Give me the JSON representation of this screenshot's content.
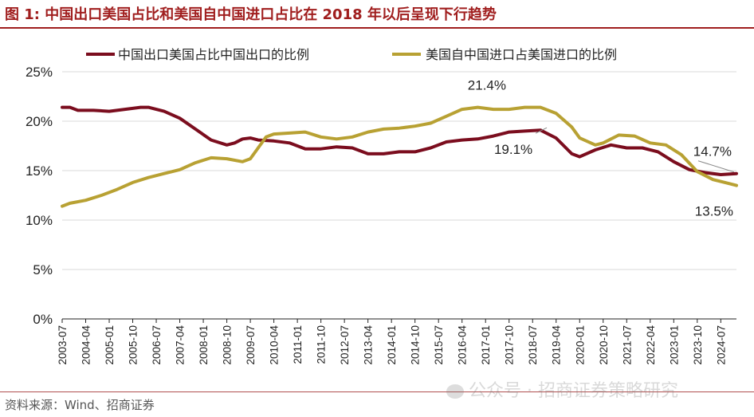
{
  "title": "图 1:  中国出口美国占比和美国自中国进口占比在 2018 年以后呈现下行趋势",
  "source": "资料来源：Wind、招商证券",
  "watermark": "公众号 · 招商证券策略研究",
  "colors": {
    "accent": "#a01e1e",
    "series1": "#7b0d1e",
    "series2": "#b8a133"
  },
  "chart_data": {
    "type": "line",
    "title": "中国出口美国占比和美国自中国进口占比在 2018 年以后呈现下行趋势",
    "xlabel": "",
    "ylabel": "",
    "ylim": [
      0,
      25
    ],
    "yticks": [
      "0%",
      "5%",
      "10%",
      "15%",
      "20%",
      "25%"
    ],
    "x_tick_labels": [
      "2003-07",
      "2004-04",
      "2005-01",
      "2005-10",
      "2006-07",
      "2007-04",
      "2008-01",
      "2008-10",
      "2009-07",
      "2010-04",
      "2011-01",
      "2011-10",
      "2012-07",
      "2013-04",
      "2014-01",
      "2014-10",
      "2015-07",
      "2016-04",
      "2017-01",
      "2017-10",
      "2018-07",
      "2019-04",
      "2020-01",
      "2020-10",
      "2021-07",
      "2022-04",
      "2023-01",
      "2023-10",
      "2024-07"
    ],
    "legend_position": "top",
    "grid": "horizontal",
    "series": [
      {
        "name": "中国出口美国占比中国出口的比例",
        "points": [
          [
            "2003-07",
            21.4
          ],
          [
            "2003-10",
            21.4
          ],
          [
            "2004-01",
            21.1
          ],
          [
            "2004-07",
            21.1
          ],
          [
            "2005-01",
            21.0
          ],
          [
            "2005-07",
            21.2
          ],
          [
            "2006-01",
            21.4
          ],
          [
            "2006-04",
            21.4
          ],
          [
            "2006-10",
            21.0
          ],
          [
            "2007-04",
            20.3
          ],
          [
            "2007-10",
            19.2
          ],
          [
            "2008-04",
            18.1
          ],
          [
            "2008-10",
            17.6
          ],
          [
            "2009-01",
            17.8
          ],
          [
            "2009-04",
            18.2
          ],
          [
            "2009-07",
            18.3
          ],
          [
            "2009-10",
            18.1
          ],
          [
            "2010-04",
            18.0
          ],
          [
            "2010-10",
            17.8
          ],
          [
            "2011-04",
            17.2
          ],
          [
            "2011-10",
            17.2
          ],
          [
            "2012-04",
            17.4
          ],
          [
            "2012-10",
            17.3
          ],
          [
            "2013-04",
            16.7
          ],
          [
            "2013-10",
            16.7
          ],
          [
            "2014-04",
            16.9
          ],
          [
            "2014-10",
            16.9
          ],
          [
            "2015-04",
            17.3
          ],
          [
            "2015-10",
            17.9
          ],
          [
            "2016-04",
            18.1
          ],
          [
            "2016-10",
            18.2
          ],
          [
            "2017-04",
            18.5
          ],
          [
            "2017-10",
            18.9
          ],
          [
            "2018-04",
            19.0
          ],
          [
            "2018-10",
            19.1
          ],
          [
            "2019-04",
            18.3
          ],
          [
            "2019-10",
            16.7
          ],
          [
            "2020-01",
            16.4
          ],
          [
            "2020-07",
            17.1
          ],
          [
            "2021-01",
            17.6
          ],
          [
            "2021-07",
            17.3
          ],
          [
            "2022-01",
            17.3
          ],
          [
            "2022-07",
            16.9
          ],
          [
            "2023-01",
            15.9
          ],
          [
            "2023-07",
            15.1
          ],
          [
            "2024-01",
            14.8
          ],
          [
            "2024-07",
            14.6
          ],
          [
            "2025-01",
            14.7
          ]
        ]
      },
      {
        "name": "美国自中国进口占美国进口的比例",
        "points": [
          [
            "2003-07",
            11.4
          ],
          [
            "2003-10",
            11.7
          ],
          [
            "2004-04",
            12.0
          ],
          [
            "2004-10",
            12.5
          ],
          [
            "2005-04",
            13.1
          ],
          [
            "2005-10",
            13.8
          ],
          [
            "2006-04",
            14.3
          ],
          [
            "2006-10",
            14.7
          ],
          [
            "2007-04",
            15.1
          ],
          [
            "2007-10",
            15.8
          ],
          [
            "2008-04",
            16.3
          ],
          [
            "2008-10",
            16.2
          ],
          [
            "2009-04",
            15.9
          ],
          [
            "2009-07",
            16.2
          ],
          [
            "2009-10",
            17.3
          ],
          [
            "2010-01",
            18.4
          ],
          [
            "2010-04",
            18.7
          ],
          [
            "2010-10",
            18.8
          ],
          [
            "2011-04",
            18.9
          ],
          [
            "2011-10",
            18.4
          ],
          [
            "2012-04",
            18.2
          ],
          [
            "2012-10",
            18.4
          ],
          [
            "2013-04",
            18.9
          ],
          [
            "2013-10",
            19.2
          ],
          [
            "2014-04",
            19.3
          ],
          [
            "2014-10",
            19.5
          ],
          [
            "2015-04",
            19.8
          ],
          [
            "2015-10",
            20.5
          ],
          [
            "2016-04",
            21.2
          ],
          [
            "2016-10",
            21.4
          ],
          [
            "2017-04",
            21.2
          ],
          [
            "2017-10",
            21.2
          ],
          [
            "2018-04",
            21.4
          ],
          [
            "2018-10",
            21.4
          ],
          [
            "2019-04",
            20.8
          ],
          [
            "2019-10",
            19.4
          ],
          [
            "2020-01",
            18.3
          ],
          [
            "2020-07",
            17.6
          ],
          [
            "2020-10",
            17.8
          ],
          [
            "2021-04",
            18.6
          ],
          [
            "2021-10",
            18.5
          ],
          [
            "2022-04",
            17.8
          ],
          [
            "2022-10",
            17.6
          ],
          [
            "2023-04",
            16.6
          ],
          [
            "2023-10",
            14.9
          ],
          [
            "2024-04",
            14.1
          ],
          [
            "2024-10",
            13.7
          ],
          [
            "2025-01",
            13.5
          ]
        ]
      }
    ],
    "annotations": [
      {
        "text": "21.4%",
        "x": "2017-07",
        "y": 21.4
      },
      {
        "text": "19.1%",
        "x": "2018-10",
        "y": 19.1
      },
      {
        "text": "14.7%",
        "x": "2025-01",
        "y": 14.7
      },
      {
        "text": "13.5%",
        "x": "2025-01",
        "y": 13.5
      }
    ]
  }
}
